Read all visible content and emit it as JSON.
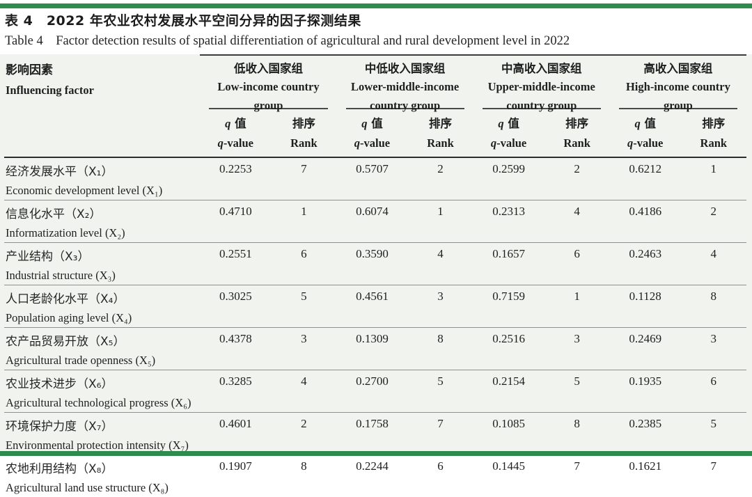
{
  "page": {
    "title_zh": "表 4　2022 年农业农村发展水平空间分异的因子探测结果",
    "title_en": "Table 4    Factor detection results of spatial differentiation of agricultural and rural development level in 2022",
    "accent_color": "#2f8a4e",
    "table_bg": "#f1f4ee"
  },
  "table": {
    "factor_header": {
      "zh": "影响因素",
      "en": "Influencing factor"
    },
    "groups": [
      {
        "zh": "低收入国家组",
        "en": "Low-income country group"
      },
      {
        "zh": "中低收入国家组",
        "en": "Lower-middle-income country group"
      },
      {
        "zh": "中高收入国家组",
        "en": "Upper-middle-income country group"
      },
      {
        "zh": "高收入国家组",
        "en": "High-income country group"
      }
    ],
    "subheader": {
      "q_italic": "q",
      "q_zh_rest": " 值",
      "q_en_rest": "-value",
      "rank_zh": "排序",
      "rank_en": "Rank"
    },
    "rows": [
      {
        "zh": "经济发展水平（X₁）",
        "en": "Economic development level (X₁)",
        "values": [
          "0.2253",
          "7",
          "0.5707",
          "2",
          "0.2599",
          "2",
          "0.6212",
          "1"
        ]
      },
      {
        "zh": "信息化水平（X₂）",
        "en": "Informatization level (X₂)",
        "values": [
          "0.4710",
          "1",
          "0.6074",
          "1",
          "0.2313",
          "4",
          "0.4186",
          "2"
        ]
      },
      {
        "zh": "产业结构（X₃）",
        "en": "Industrial structure (X₃)",
        "values": [
          "0.2551",
          "6",
          "0.3590",
          "4",
          "0.1657",
          "6",
          "0.2463",
          "4"
        ]
      },
      {
        "zh": "人口老龄化水平（X₄）",
        "en": "Population aging level (X₄)",
        "values": [
          "0.3025",
          "5",
          "0.4561",
          "3",
          "0.7159",
          "1",
          "0.1128",
          "8"
        ]
      },
      {
        "zh": "农产品贸易开放（X₅）",
        "en": "Agricultural trade openness (X₅)",
        "values": [
          "0.4378",
          "3",
          "0.1309",
          "8",
          "0.2516",
          "3",
          "0.2469",
          "3"
        ]
      },
      {
        "zh": "农业技术进步（X₆）",
        "en": "Agricultural technological progress (X₆)",
        "values": [
          "0.3285",
          "4",
          "0.2700",
          "5",
          "0.2154",
          "5",
          "0.1935",
          "6"
        ]
      },
      {
        "zh": "环境保护力度（X₇）",
        "en": "Environmental protection intensity (X₇)",
        "values": [
          "0.4601",
          "2",
          "0.1758",
          "7",
          "0.1085",
          "8",
          "0.2385",
          "5"
        ]
      },
      {
        "zh": "农地利用结构（X₈）",
        "en": "Agricultural land use structure (X₈)",
        "values": [
          "0.1907",
          "8",
          "0.2244",
          "6",
          "0.1445",
          "7",
          "0.1621",
          "7"
        ]
      }
    ]
  }
}
